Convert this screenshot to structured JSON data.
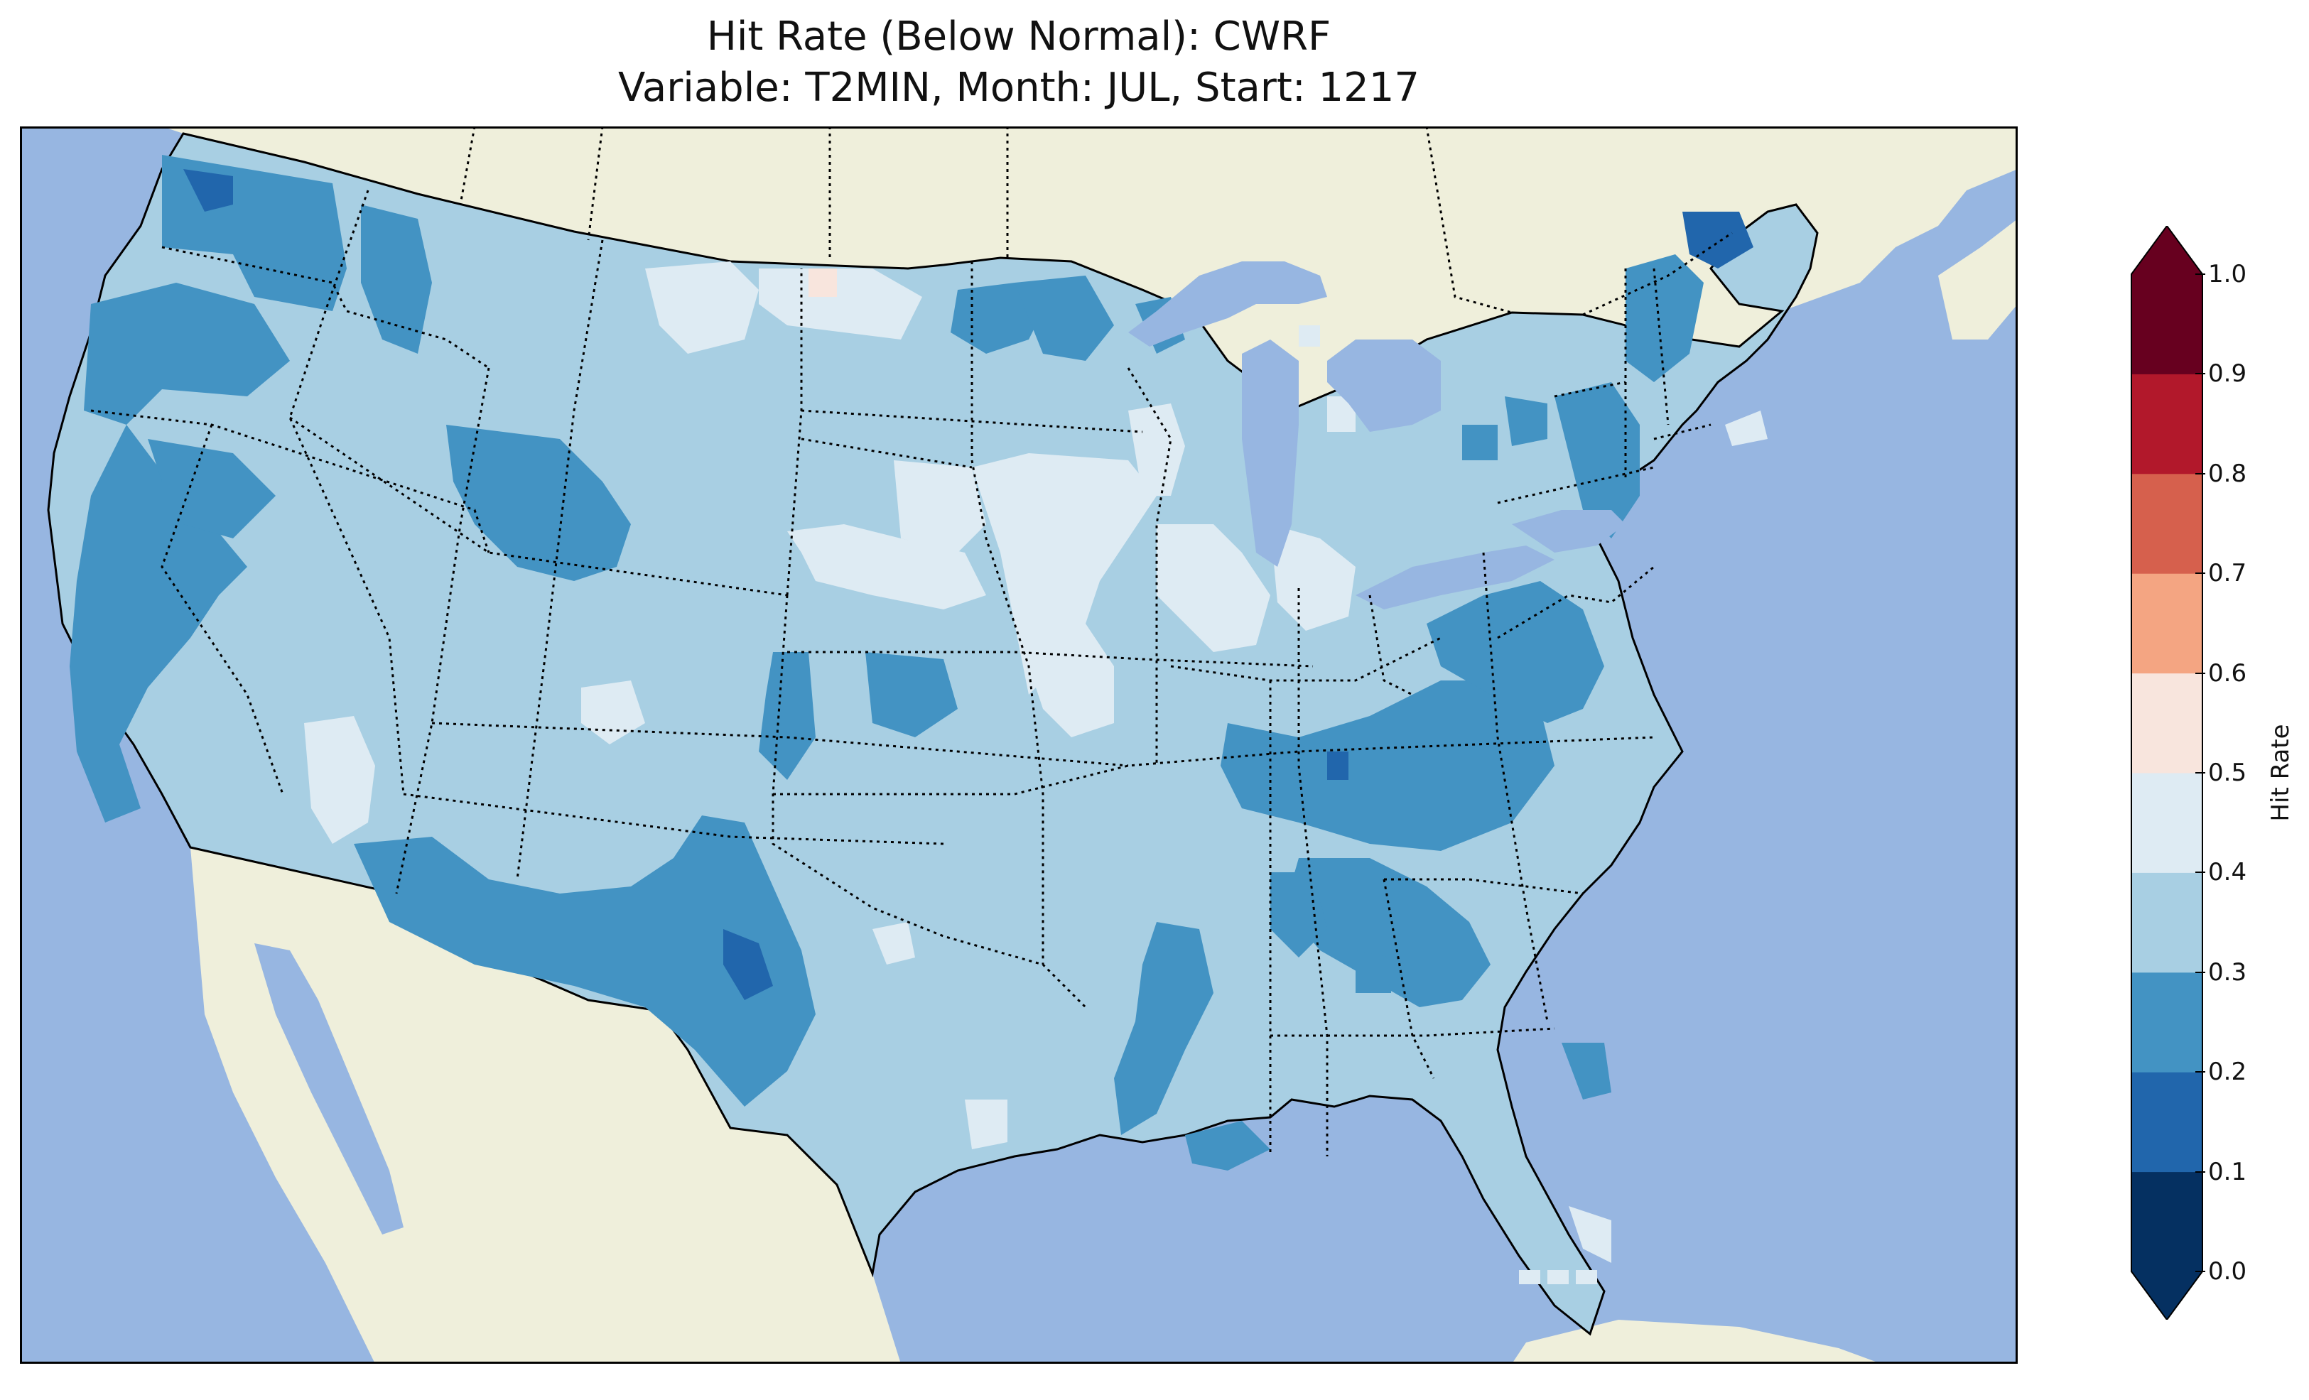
{
  "title": {
    "line1": "Hit Rate (Below Normal): CWRF",
    "line2": "Variable: T2MIN, Month: JUL, Start: 1217"
  },
  "map": {
    "region": "Continental United States",
    "projection": "Plate Carree",
    "lon_range": [
      -125,
      -66
    ],
    "lat_range": [
      24,
      50
    ],
    "ocean_color": "#97b6e1",
    "land_color": "#efefdb",
    "border_style": "dotted state boundaries, solid coastlines",
    "dominant_range": "0.3-0.4"
  },
  "colorbar": {
    "label": "Hit Rate",
    "ticks": [
      "0.0",
      "0.1",
      "0.2",
      "0.3",
      "0.4",
      "0.5",
      "0.6",
      "0.7",
      "0.8",
      "0.9",
      "1.0"
    ],
    "colors": [
      "#053061",
      "#2166ac",
      "#4393c3",
      "#a8cfe3",
      "#deebf3",
      "#f8e5dd",
      "#f4a582",
      "#d6604d",
      "#b2182b",
      "#67001f"
    ],
    "extend": "both"
  }
}
